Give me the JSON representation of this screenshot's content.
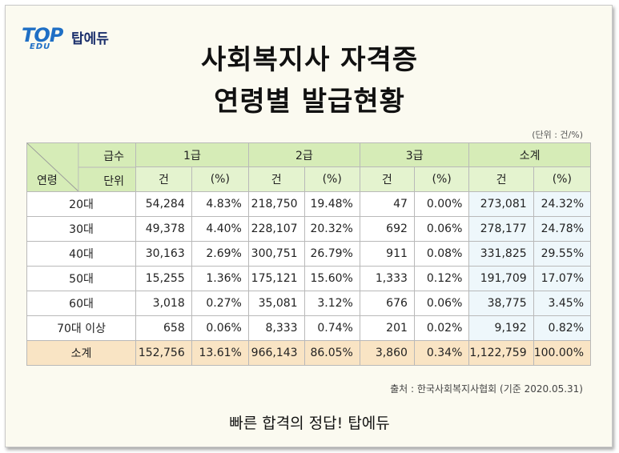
{
  "logo": {
    "mark": "TOP",
    "sub": "EDU",
    "name": "탑에듀"
  },
  "title": {
    "line1": "사회복지사 자격증",
    "line2": "연령별 발급현황"
  },
  "unit_note": "(단위 : 건/%)",
  "table": {
    "corner": {
      "top": "급수",
      "middle": "단위",
      "bottom": "연령"
    },
    "groups": [
      "1급",
      "2급",
      "3급",
      "소계"
    ],
    "sub_headers": [
      "건",
      "(%)"
    ],
    "rows": [
      {
        "label": "20대",
        "values": [
          "54,284",
          "4.83%",
          "218,750",
          "19.48%",
          "47",
          "0.00%",
          "273,081",
          "24.32%"
        ]
      },
      {
        "label": "30대",
        "values": [
          "49,378",
          "4.40%",
          "228,107",
          "20.32%",
          "692",
          "0.06%",
          "278,177",
          "24.78%"
        ]
      },
      {
        "label": "40대",
        "values": [
          "30,163",
          "2.69%",
          "300,751",
          "26.79%",
          "911",
          "0.08%",
          "331,825",
          "29.55%"
        ]
      },
      {
        "label": "50대",
        "values": [
          "15,255",
          "1.36%",
          "175,121",
          "15.60%",
          "1,333",
          "0.12%",
          "191,709",
          "17.07%"
        ]
      },
      {
        "label": "60대",
        "values": [
          "3,018",
          "0.27%",
          "35,081",
          "3.12%",
          "676",
          "0.06%",
          "38,775",
          "3.45%"
        ]
      },
      {
        "label": "70대 이상",
        "values": [
          "658",
          "0.06%",
          "8,333",
          "0.74%",
          "201",
          "0.02%",
          "9,192",
          "0.82%"
        ]
      }
    ],
    "total": {
      "label": "소계",
      "values": [
        "152,756",
        "13.61%",
        "966,143",
        "86.05%",
        "3,860",
        "0.34%",
        "1,122,759",
        "100.00%"
      ]
    }
  },
  "source": "출처 : 한국사회복지사협회 (기준 2020.05.31)",
  "tagline": "빠른 합격의 정답! 탑에듀",
  "colors": {
    "header_bg": "#d6ecb7",
    "total_bg": "#f9e4c4",
    "subtotal_col_bg": "#eef7fb",
    "logo_blue": "#1f6fc5"
  }
}
